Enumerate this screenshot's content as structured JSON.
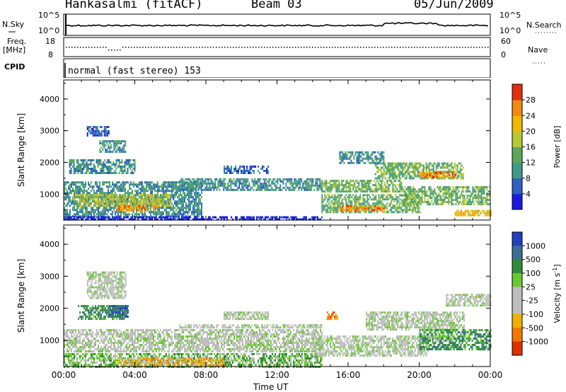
{
  "header": {
    "station": "Hankasalmi (fitACF)",
    "beam": "Beam 03",
    "date": "05/Jun/2009"
  },
  "top_panels": {
    "nsky_label": "N.Sky",
    "nsky_top": "10^5",
    "nsky_bottom": "10^0",
    "nsearch_label": "N.Search",
    "nsearch_top": "10^5",
    "nsearch_bottom": "10^0",
    "freq_label": "Freq.",
    "freq_unit": "[MHz]",
    "freq_top": "18",
    "freq_bottom": "8",
    "nave_label": "Nave",
    "nave_top": "60",
    "nave_bottom": "0",
    "cpid_label": "CPID",
    "cpid_text": "normal (fast stereo) 153"
  },
  "colors": {
    "power": [
      "#1a1ae0",
      "#3060c0",
      "#3f9a8a",
      "#5aa85a",
      "#b8c830",
      "#f0b800",
      "#f08a10",
      "#e03010"
    ],
    "velocity": [
      "#2040c0",
      "#3a6e96",
      "#2f8a3a",
      "#6ac832",
      "#bebebe",
      "#bebebe",
      "#f0b000",
      "#f07800",
      "#e03000"
    ]
  },
  "chart_data": [
    {
      "type": "heatmap",
      "title": "Power",
      "ylabel": "Slant Range [km]",
      "xlabel": "",
      "ylim": [
        180,
        4600
      ],
      "y_ticks": [
        "1000",
        "2000",
        "3000",
        "4000"
      ],
      "colorbar_label": "Power [dB]",
      "colorbar_ticks": [
        "4",
        "8",
        "12",
        "16",
        "20",
        "24",
        "28"
      ],
      "regions": [
        {
          "t0": 0.0,
          "t1": 7.8,
          "r0": 300,
          "r1": 1400,
          "level": 2
        },
        {
          "t0": 0.5,
          "t1": 6.0,
          "r0": 650,
          "r1": 1000,
          "level": 4
        },
        {
          "t0": 3.0,
          "t1": 5.2,
          "r0": 480,
          "r1": 640,
          "level": 6
        },
        {
          "t0": 0.3,
          "t1": 4.0,
          "r0": 1650,
          "r1": 2100,
          "level": 2
        },
        {
          "t0": 1.3,
          "t1": 2.5,
          "r0": 2850,
          "r1": 3150,
          "level": 1
        },
        {
          "t0": 2.0,
          "t1": 3.5,
          "r0": 2300,
          "r1": 2700,
          "level": 2
        },
        {
          "t0": 6.5,
          "t1": 14.5,
          "r0": 1150,
          "r1": 1500,
          "level": 2
        },
        {
          "t0": 9.0,
          "t1": 11.5,
          "r0": 1650,
          "r1": 1900,
          "level": 1
        },
        {
          "t0": 14.5,
          "t1": 20.0,
          "r0": 450,
          "r1": 1000,
          "level": 3
        },
        {
          "t0": 15.5,
          "t1": 18.0,
          "r0": 480,
          "r1": 650,
          "level": 6
        },
        {
          "t0": 14.5,
          "t1": 19.0,
          "r0": 1100,
          "r1": 1450,
          "level": 3
        },
        {
          "t0": 17.5,
          "t1": 22.5,
          "r0": 1500,
          "r1": 2000,
          "level": 3
        },
        {
          "t0": 20.0,
          "t1": 22.0,
          "r0": 1550,
          "r1": 1700,
          "level": 6
        },
        {
          "t0": 19.0,
          "t1": 24.0,
          "r0": 700,
          "r1": 1250,
          "level": 3
        },
        {
          "t0": 22.0,
          "t1": 24.0,
          "r0": 300,
          "r1": 500,
          "level": 5
        },
        {
          "t0": 15.5,
          "t1": 18.0,
          "r0": 2000,
          "r1": 2350,
          "level": 2
        },
        {
          "t0": 0.0,
          "t1": 14.5,
          "r0": 180,
          "r1": 300,
          "level": 0
        }
      ]
    },
    {
      "type": "heatmap",
      "title": "Velocity",
      "ylabel": "Slant Range [km]",
      "xlabel": "Time UT",
      "ylim": [
        180,
        4600
      ],
      "y_ticks": [
        "1000",
        "2000",
        "3000",
        "4000"
      ],
      "x_ticks": [
        "00:00",
        "04:00",
        "08:00",
        "12:00",
        "16:00",
        "20:00",
        "00:00"
      ],
      "colorbar_label": "Velocity [m s^-1]",
      "colorbar_ticks": [
        "1000",
        "500",
        "100",
        "25",
        "-25",
        "-100",
        "-500",
        "-1000"
      ],
      "regions": [
        {
          "t0": 0.0,
          "t1": 14.5,
          "r0": 650,
          "r1": 1350,
          "level": 4
        },
        {
          "t0": 0.8,
          "t1": 3.6,
          "r0": 1650,
          "r1": 2100,
          "level": 2
        },
        {
          "t0": 2.5,
          "t1": 3.6,
          "r0": 1750,
          "r1": 2100,
          "level": 1
        },
        {
          "t0": 0.0,
          "t1": 14.5,
          "r0": 180,
          "r1": 600,
          "level": 3
        },
        {
          "t0": 3.0,
          "t1": 9.0,
          "r0": 200,
          "r1": 450,
          "level": 6
        },
        {
          "t0": 1.3,
          "t1": 3.5,
          "r0": 2300,
          "r1": 3150,
          "level": 4
        },
        {
          "t0": 6.5,
          "t1": 14.5,
          "r0": 1400,
          "r1": 1500,
          "level": 4
        },
        {
          "t0": 9.0,
          "t1": 11.5,
          "r0": 1650,
          "r1": 1900,
          "level": 4
        },
        {
          "t0": 14.0,
          "t1": 20.5,
          "r0": 500,
          "r1": 1150,
          "level": 4
        },
        {
          "t0": 17.0,
          "t1": 22.5,
          "r0": 1350,
          "r1": 1900,
          "level": 4
        },
        {
          "t0": 20.0,
          "t1": 24.0,
          "r0": 700,
          "r1": 1350,
          "level": 2
        },
        {
          "t0": 20.5,
          "t1": 22.0,
          "r0": 1000,
          "r1": 1150,
          "level": 3
        },
        {
          "t0": 14.8,
          "t1": 15.4,
          "r0": 1650,
          "r1": 1900,
          "level": 7
        },
        {
          "t0": 21.5,
          "t1": 24.0,
          "r0": 2100,
          "r1": 2450,
          "level": 4
        }
      ]
    }
  ]
}
